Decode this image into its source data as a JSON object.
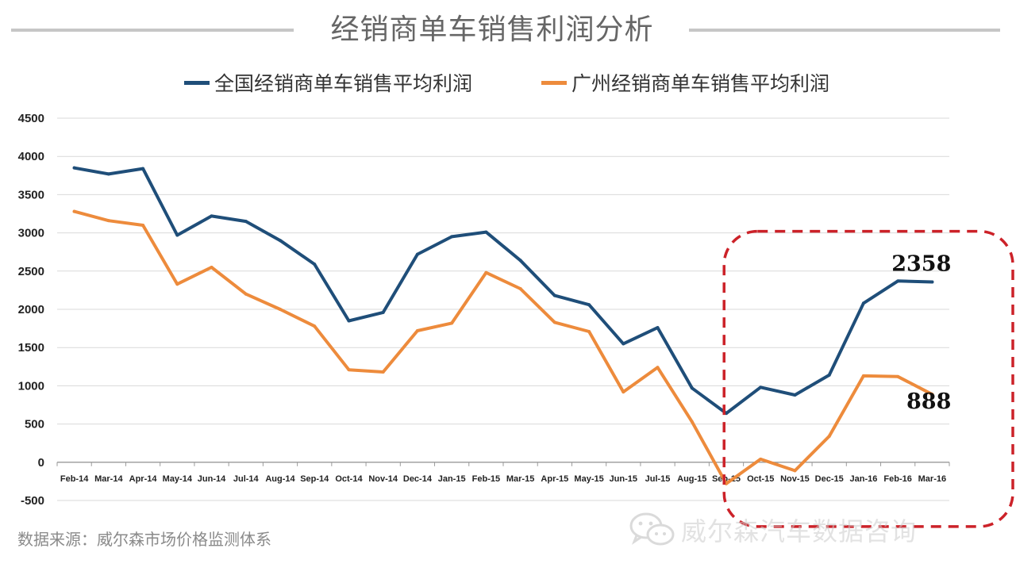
{
  "page": {
    "title": "经销商单车销售利润分析",
    "source": "数据来源：威尔森市场价格监测体系",
    "watermark": "威尔森汽车数据咨询"
  },
  "colors": {
    "national": "#1f4e79",
    "guangzhou": "#ed8b3c",
    "highlight_box": "#cc2229",
    "rule": "#c6c6c6"
  },
  "chart_data": {
    "type": "line",
    "categories": [
      "Feb-14",
      "Mar-14",
      "Apr-14",
      "May-14",
      "Jun-14",
      "Jul-14",
      "Aug-14",
      "Sep-14",
      "Oct-14",
      "Nov-14",
      "Dec-14",
      "Jan-15",
      "Feb-15",
      "Mar-15",
      "Apr-15",
      "May-15",
      "Jun-15",
      "Jul-15",
      "Aug-15",
      "Sep-15",
      "Oct-15",
      "Nov-15",
      "Dec-15",
      "Jan-16",
      "Feb-16",
      "Mar-16"
    ],
    "series": [
      {
        "name": "全国经销商单车销售平均利润",
        "color": "#1f4e79",
        "values": [
          3850,
          3770,
          3840,
          2970,
          3220,
          3150,
          2900,
          2590,
          1850,
          1960,
          2720,
          2950,
          3010,
          2640,
          2180,
          2060,
          1550,
          1760,
          970,
          640,
          980,
          880,
          1140,
          2080,
          2370,
          2358
        ]
      },
      {
        "name": "广州经销商单车销售平均利润",
        "color": "#ed8b3c",
        "values": [
          3280,
          3160,
          3100,
          2330,
          2550,
          2200,
          2000,
          1780,
          1210,
          1180,
          1720,
          1820,
          2480,
          2270,
          1830,
          1710,
          920,
          1240,
          530,
          -280,
          40,
          -110,
          340,
          1130,
          1120,
          888
        ]
      }
    ],
    "ylim": [
      -500,
      4500
    ],
    "yticks": [
      "-500",
      "0",
      "500",
      "1000",
      "1500",
      "2000",
      "2500",
      "3000",
      "3500",
      "4000",
      "4500"
    ],
    "grid": true,
    "legend": "top",
    "annotations": [
      {
        "text": "2358",
        "series": 0,
        "category": "Mar-16"
      },
      {
        "text": "888",
        "series": 1,
        "category": "Mar-16"
      }
    ],
    "highlight": {
      "from": "Oct-15",
      "to": "Mar-16",
      "style": "dashed-rounded-box"
    }
  }
}
